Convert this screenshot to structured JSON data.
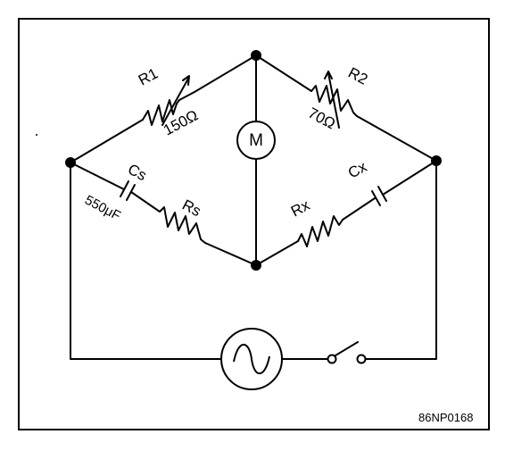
{
  "diagram": {
    "components": {
      "r1": {
        "label": "R1",
        "value": "150Ω"
      },
      "r2": {
        "label": "R2",
        "value": "70Ω"
      },
      "meter": {
        "label": "M"
      },
      "cs": {
        "label": "Cs",
        "value": "550μF"
      },
      "rs": {
        "label": "Rs"
      },
      "rx": {
        "label": "Rx"
      },
      "cx": {
        "label": "Cx"
      },
      "source": {
        "icon": "ac-source-icon"
      },
      "switch": {
        "icon": "switch-icon"
      }
    },
    "figure_code": "86NP0168",
    "colors": {
      "line": "#000000",
      "background": "#ffffff"
    }
  }
}
